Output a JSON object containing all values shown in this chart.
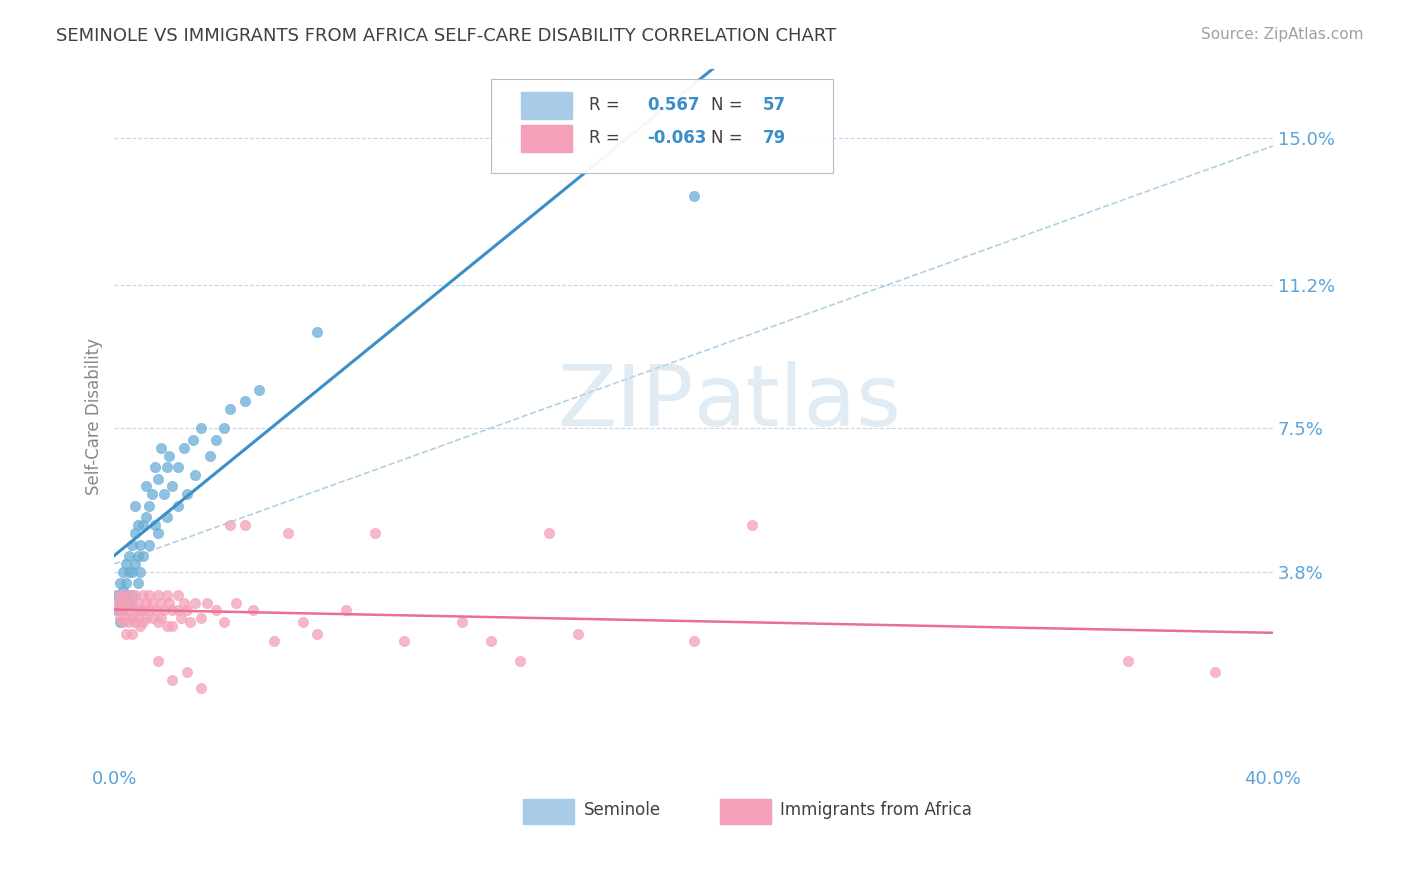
{
  "title": "SEMINOLE VS IMMIGRANTS FROM AFRICA SELF-CARE DISABILITY CORRELATION CHART",
  "source_text": "Source: ZipAtlas.com",
  "ylabel": "Self-Care Disability",
  "xlim": [
    0.0,
    0.4
  ],
  "ylim": [
    -0.012,
    0.168
  ],
  "ytick_positions": [
    0.038,
    0.075,
    0.112,
    0.15
  ],
  "ytick_labels": [
    "3.8%",
    "7.5%",
    "11.2%",
    "15.0%"
  ],
  "xtick_positions": [
    0.0,
    0.4
  ],
  "xtick_labels": [
    "0.0%",
    "40.0%"
  ],
  "watermark": "ZIPatlas",
  "seminole_color": "#6aaed6",
  "africa_color": "#f4a0b8",
  "trend_seminole_color": "#3c8ec8",
  "trend_africa_color": "#e87090",
  "conf_seminole_color": "#90bcd8",
  "background_color": "#ffffff",
  "grid_color": "#c8d8e8",
  "title_color": "#404040",
  "axis_label_color": "#5ba3d9",
  "legend_r_color": "#3c8ec8",
  "legend_n_color": "#3c8ec8",
  "seminole_R": "0.567",
  "seminole_N": "57",
  "africa_R": "-0.063",
  "africa_N": "79",
  "seminole_scatter": [
    [
      0.001,
      0.028
    ],
    [
      0.001,
      0.032
    ],
    [
      0.002,
      0.03
    ],
    [
      0.002,
      0.025
    ],
    [
      0.002,
      0.035
    ],
    [
      0.003,
      0.033
    ],
    [
      0.003,
      0.028
    ],
    [
      0.003,
      0.038
    ],
    [
      0.004,
      0.032
    ],
    [
      0.004,
      0.04
    ],
    [
      0.004,
      0.035
    ],
    [
      0.005,
      0.042
    ],
    [
      0.005,
      0.038
    ],
    [
      0.005,
      0.03
    ],
    [
      0.006,
      0.045
    ],
    [
      0.006,
      0.038
    ],
    [
      0.006,
      0.032
    ],
    [
      0.007,
      0.048
    ],
    [
      0.007,
      0.04
    ],
    [
      0.007,
      0.055
    ],
    [
      0.008,
      0.042
    ],
    [
      0.008,
      0.035
    ],
    [
      0.008,
      0.05
    ],
    [
      0.009,
      0.045
    ],
    [
      0.009,
      0.038
    ],
    [
      0.01,
      0.05
    ],
    [
      0.01,
      0.042
    ],
    [
      0.011,
      0.06
    ],
    [
      0.011,
      0.052
    ],
    [
      0.012,
      0.055
    ],
    [
      0.012,
      0.045
    ],
    [
      0.013,
      0.058
    ],
    [
      0.014,
      0.065
    ],
    [
      0.014,
      0.05
    ],
    [
      0.015,
      0.062
    ],
    [
      0.015,
      0.048
    ],
    [
      0.016,
      0.07
    ],
    [
      0.017,
      0.058
    ],
    [
      0.018,
      0.065
    ],
    [
      0.018,
      0.052
    ],
    [
      0.019,
      0.068
    ],
    [
      0.02,
      0.06
    ],
    [
      0.022,
      0.065
    ],
    [
      0.022,
      0.055
    ],
    [
      0.024,
      0.07
    ],
    [
      0.025,
      0.058
    ],
    [
      0.027,
      0.072
    ],
    [
      0.028,
      0.063
    ],
    [
      0.03,
      0.075
    ],
    [
      0.033,
      0.068
    ],
    [
      0.035,
      0.072
    ],
    [
      0.038,
      0.075
    ],
    [
      0.04,
      0.08
    ],
    [
      0.045,
      0.082
    ],
    [
      0.05,
      0.085
    ],
    [
      0.07,
      0.1
    ],
    [
      0.2,
      0.135
    ]
  ],
  "africa_scatter": [
    [
      0.001,
      0.03
    ],
    [
      0.001,
      0.028
    ],
    [
      0.002,
      0.032
    ],
    [
      0.002,
      0.026
    ],
    [
      0.002,
      0.03
    ],
    [
      0.003,
      0.028
    ],
    [
      0.003,
      0.025
    ],
    [
      0.003,
      0.032
    ],
    [
      0.004,
      0.03
    ],
    [
      0.004,
      0.026
    ],
    [
      0.004,
      0.022
    ],
    [
      0.005,
      0.032
    ],
    [
      0.005,
      0.028
    ],
    [
      0.005,
      0.025
    ],
    [
      0.006,
      0.03
    ],
    [
      0.006,
      0.026
    ],
    [
      0.006,
      0.022
    ],
    [
      0.007,
      0.032
    ],
    [
      0.007,
      0.028
    ],
    [
      0.007,
      0.025
    ],
    [
      0.008,
      0.03
    ],
    [
      0.008,
      0.026
    ],
    [
      0.009,
      0.028
    ],
    [
      0.009,
      0.024
    ],
    [
      0.01,
      0.032
    ],
    [
      0.01,
      0.028
    ],
    [
      0.01,
      0.025
    ],
    [
      0.011,
      0.03
    ],
    [
      0.011,
      0.026
    ],
    [
      0.012,
      0.032
    ],
    [
      0.012,
      0.028
    ],
    [
      0.013,
      0.03
    ],
    [
      0.013,
      0.026
    ],
    [
      0.014,
      0.028
    ],
    [
      0.015,
      0.032
    ],
    [
      0.015,
      0.025
    ],
    [
      0.016,
      0.03
    ],
    [
      0.016,
      0.026
    ],
    [
      0.017,
      0.028
    ],
    [
      0.018,
      0.032
    ],
    [
      0.018,
      0.024
    ],
    [
      0.019,
      0.03
    ],
    [
      0.02,
      0.028
    ],
    [
      0.02,
      0.024
    ],
    [
      0.022,
      0.032
    ],
    [
      0.022,
      0.028
    ],
    [
      0.023,
      0.026
    ],
    [
      0.024,
      0.03
    ],
    [
      0.025,
      0.028
    ],
    [
      0.026,
      0.025
    ],
    [
      0.028,
      0.03
    ],
    [
      0.03,
      0.026
    ],
    [
      0.032,
      0.03
    ],
    [
      0.035,
      0.028
    ],
    [
      0.038,
      0.025
    ],
    [
      0.04,
      0.05
    ],
    [
      0.042,
      0.03
    ],
    [
      0.045,
      0.05
    ],
    [
      0.048,
      0.028
    ],
    [
      0.055,
      0.02
    ],
    [
      0.06,
      0.048
    ],
    [
      0.065,
      0.025
    ],
    [
      0.07,
      0.022
    ],
    [
      0.08,
      0.028
    ],
    [
      0.09,
      0.048
    ],
    [
      0.1,
      0.02
    ],
    [
      0.12,
      0.025
    ],
    [
      0.13,
      0.02
    ],
    [
      0.14,
      0.015
    ],
    [
      0.15,
      0.048
    ],
    [
      0.16,
      0.022
    ],
    [
      0.2,
      0.02
    ],
    [
      0.22,
      0.05
    ],
    [
      0.015,
      0.015
    ],
    [
      0.02,
      0.01
    ],
    [
      0.025,
      0.012
    ],
    [
      0.03,
      0.008
    ],
    [
      0.35,
      0.015
    ],
    [
      0.38,
      0.012
    ]
  ]
}
